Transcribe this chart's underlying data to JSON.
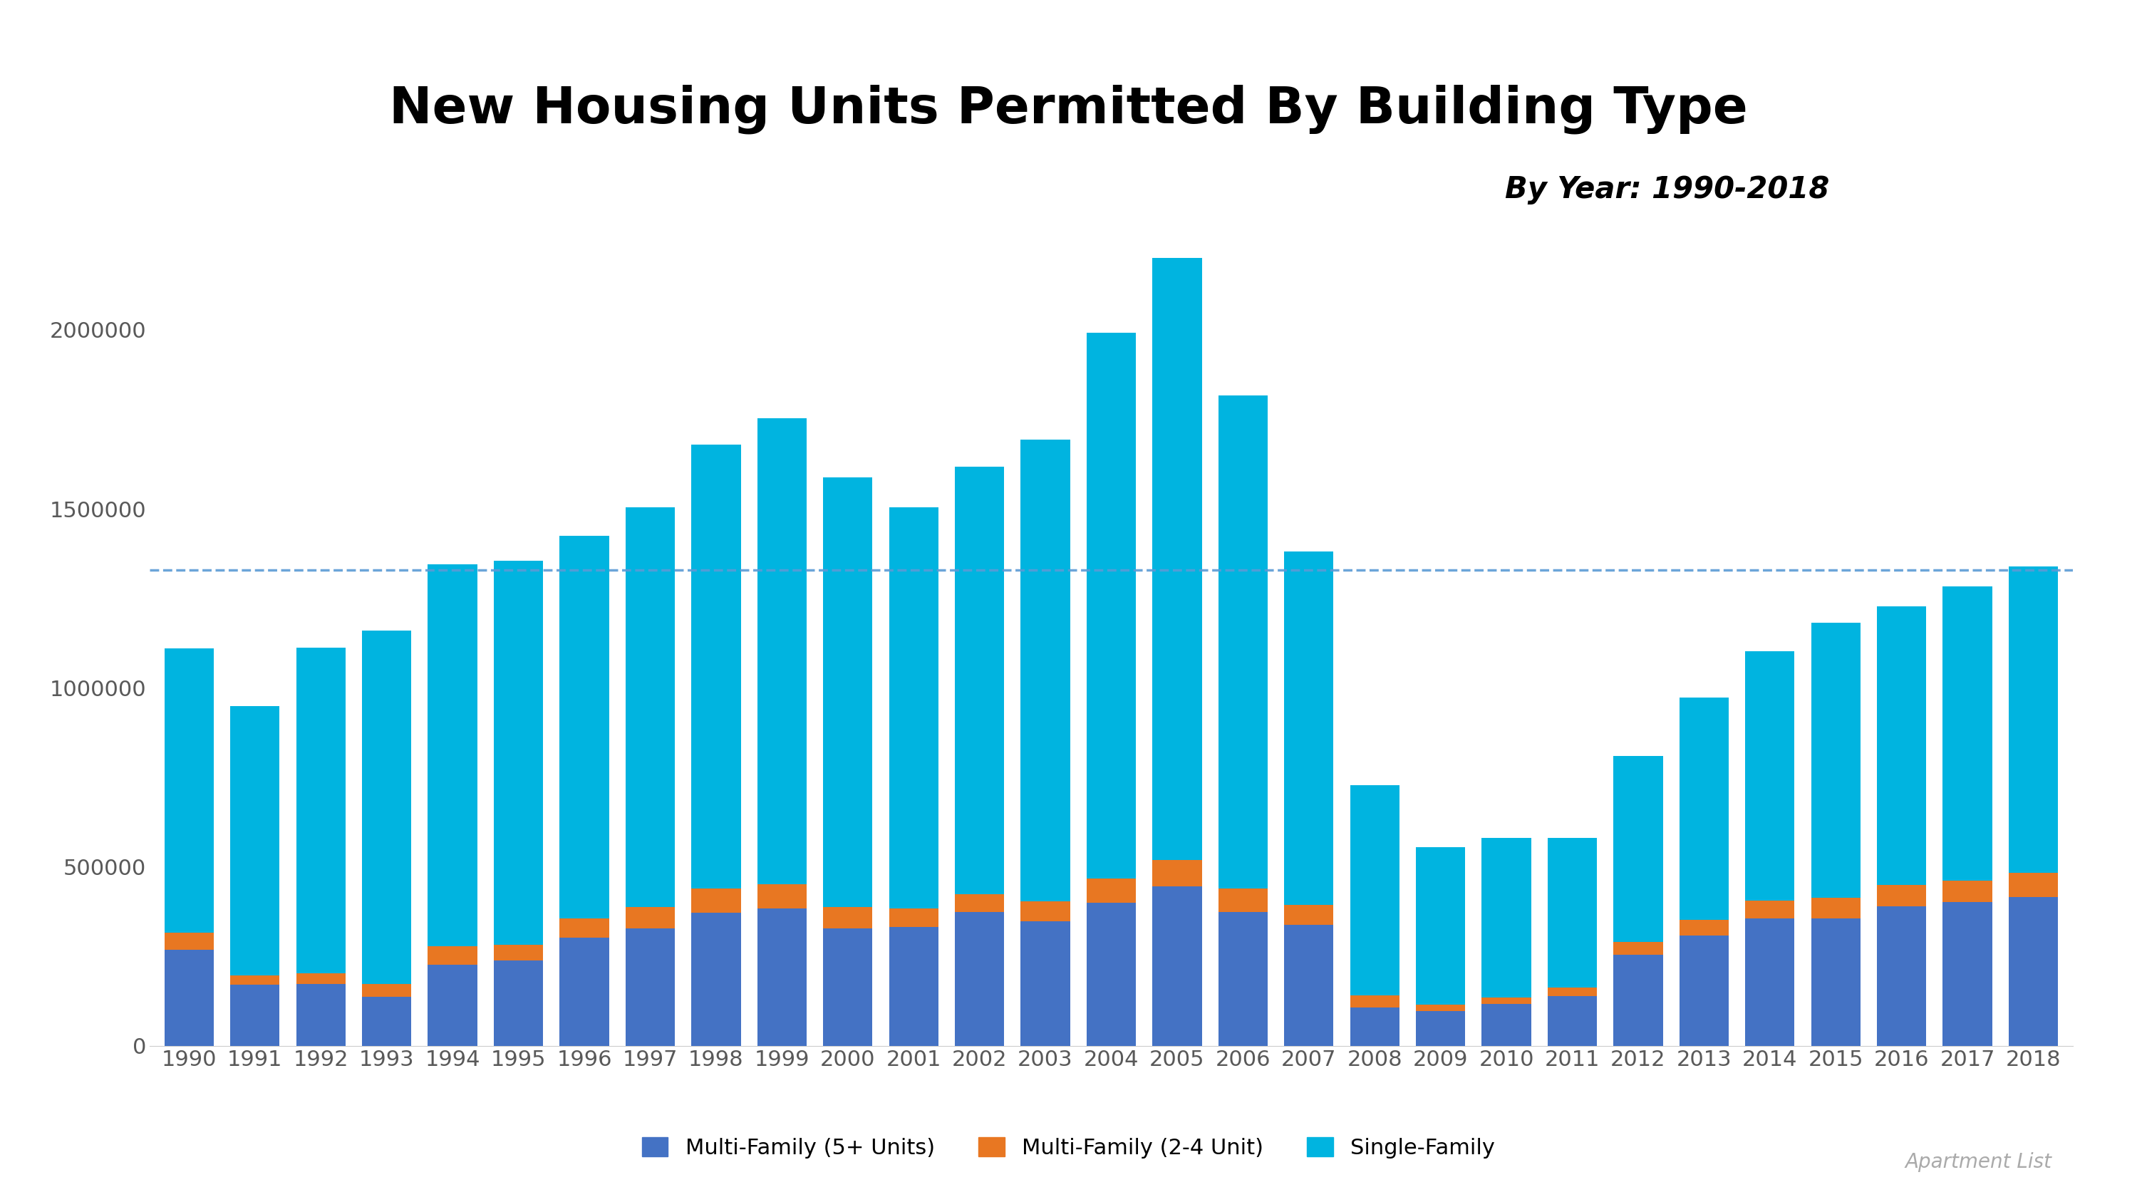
{
  "title": "New Housing Units Permitted By Building Type",
  "subtitle": "By Year: 1990-2018",
  "source": "Apartment List",
  "years": [
    1990,
    1991,
    1992,
    1993,
    1994,
    1995,
    1996,
    1997,
    1998,
    1999,
    2000,
    2001,
    2002,
    2003,
    2004,
    2005,
    2006,
    2007,
    2008,
    2009,
    2010,
    2011,
    2012,
    2013,
    2014,
    2015,
    2016,
    2017,
    2018
  ],
  "single_family": [
    794300,
    753500,
    910600,
    987000,
    1068000,
    1074000,
    1069000,
    1117000,
    1241000,
    1302000,
    1199000,
    1121000,
    1195000,
    1290000,
    1524000,
    1682000,
    1378000,
    987000,
    587000,
    441000,
    447000,
    419000,
    519000,
    621000,
    696000,
    768000,
    778000,
    823000,
    855000
  ],
  "multi_family_2_4": [
    48000,
    26000,
    30000,
    35000,
    51000,
    44000,
    55000,
    60000,
    68000,
    68000,
    60000,
    52000,
    50000,
    56000,
    68000,
    74000,
    65000,
    56000,
    34000,
    17000,
    18000,
    23000,
    37000,
    44000,
    51000,
    58000,
    60000,
    60000,
    68000
  ],
  "multi_family_5plus": [
    268000,
    170000,
    172000,
    137000,
    227000,
    238000,
    301000,
    328000,
    371000,
    384000,
    328000,
    331000,
    373000,
    348000,
    400000,
    445000,
    374000,
    338000,
    106000,
    97000,
    116000,
    139000,
    254000,
    308000,
    355000,
    355000,
    389000,
    401000,
    416000
  ],
  "dashed_line_y": 1330000,
  "ylim": [
    0,
    2250000
  ],
  "yticks": [
    0,
    500000,
    1000000,
    1500000,
    2000000
  ],
  "colors": {
    "single_family": "#00B4E0",
    "multi_family_2_4": "#E87722",
    "multi_family_5plus": "#4472C4",
    "dashed_line": "#5B9BD5",
    "background": "#FFFFFF",
    "title": "#000000",
    "subtitle": "#000000",
    "tick_label": "#595959",
    "source": "#AAAAAA"
  },
  "title_fontsize": 52,
  "subtitle_fontsize": 30,
  "tick_fontsize": 22,
  "legend_fontsize": 22,
  "source_fontsize": 20,
  "bar_width": 0.75
}
